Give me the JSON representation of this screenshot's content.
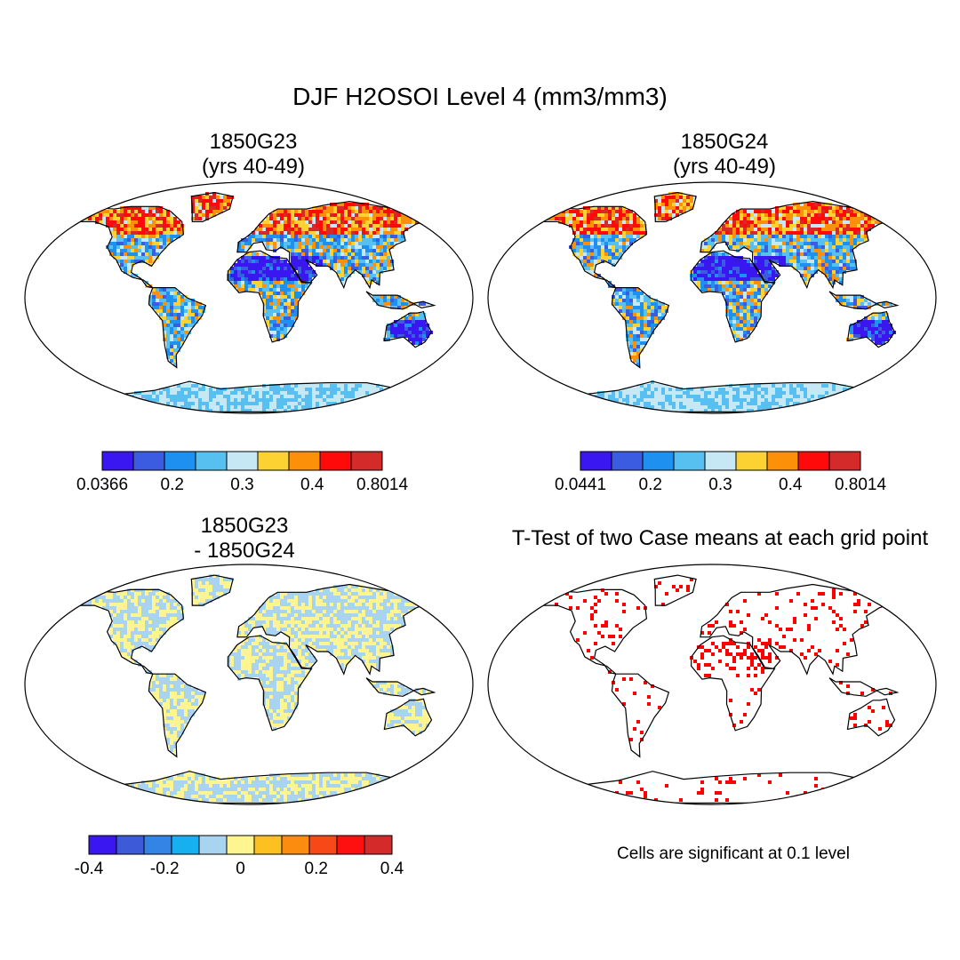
{
  "figure": {
    "title": "DJF H2OSOI Level 4 (mm3/mm3)"
  },
  "colors": {
    "abs_scale": [
      "#3a16f0",
      "#3b5ce0",
      "#1e90f0",
      "#58c0f0",
      "#c6e8f5",
      "#fcd232",
      "#fc9008",
      "#ff0a0a",
      "#d42a2a"
    ],
    "diff_scale": [
      "#3a16f0",
      "#3d5ad8",
      "#3484e6",
      "#16b0f0",
      "#a8d4f0",
      "#fff590",
      "#fcc020",
      "#fc8c10",
      "#f84818",
      "#ff1010",
      "#d42a2a"
    ],
    "land_blue": "#3a5ee8",
    "land_mid": "#a8d4f0",
    "land_warm": "#f59a18",
    "significant": "#ff0000",
    "coastline": "#000000"
  },
  "panels": [
    {
      "id": "top-left",
      "title_line1": "1850G23",
      "title_line2": "(yrs 40-49)",
      "colorbar": {
        "colors_key": "abs_scale",
        "labels": [
          "0.0366",
          "0.2",
          "0.3",
          "0.4",
          "0.8014"
        ]
      }
    },
    {
      "id": "top-right",
      "title_line1": "1850G24",
      "title_line2": "(yrs 40-49)",
      "colorbar": {
        "colors_key": "abs_scale",
        "labels": [
          "0.0441",
          "0.2",
          "0.3",
          "0.4",
          "0.8014"
        ]
      }
    },
    {
      "id": "bottom-left",
      "title_line1": "1850G23",
      "title_line2": "- 1850G24",
      "colorbar": {
        "colors_key": "diff_scale",
        "labels": [
          "-0.4",
          "-0.2",
          "0",
          "0.2",
          "0.4"
        ]
      }
    },
    {
      "id": "bottom-right",
      "title_line1": "T-Test of two Case means at each grid point",
      "note": "Cells are significant at 0.1 level"
    }
  ]
}
